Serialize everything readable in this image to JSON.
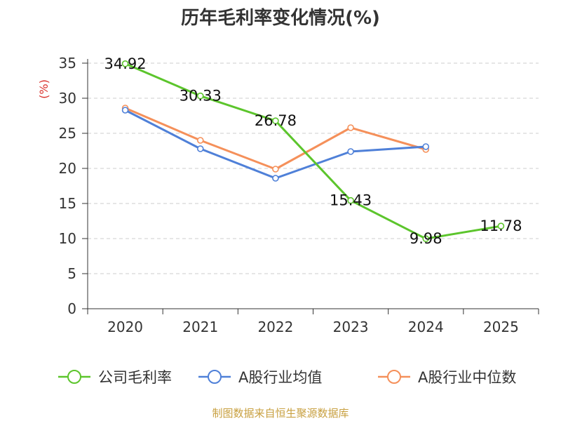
{
  "chart_data": {
    "type": "line",
    "title": "历年毛利率变化情况(%)",
    "ylabel": "(%)",
    "xlabel": "",
    "categories": [
      "2020",
      "2021",
      "2022",
      "2023",
      "2024",
      "2025"
    ],
    "ylim": [
      0,
      35
    ],
    "yticks": [
      0,
      5,
      10,
      15,
      20,
      25,
      30,
      35
    ],
    "grid": true,
    "legend_position": "bottom",
    "series": [
      {
        "name": "公司毛利率",
        "color": "#5cc52c",
        "values": [
          34.92,
          30.33,
          26.78,
          15.43,
          9.98,
          11.78
        ],
        "labels": [
          "34.92",
          "30.33",
          "26.78",
          "15.43",
          "9.98",
          "11.78"
        ],
        "show_labels": true
      },
      {
        "name": "A股行业均值",
        "color": "#4f80d8",
        "values": [
          28.3,
          22.8,
          18.6,
          22.4,
          23.1,
          null
        ],
        "show_labels": false
      },
      {
        "name": "A股行业中位数",
        "color": "#f5905a",
        "values": [
          28.6,
          24.0,
          19.9,
          25.8,
          22.7,
          null
        ],
        "show_labels": false
      }
    ]
  },
  "unit_color": "#d9312b",
  "source": {
    "text": "制图数据来自恒生聚源数据库",
    "color": "#c8a040"
  }
}
